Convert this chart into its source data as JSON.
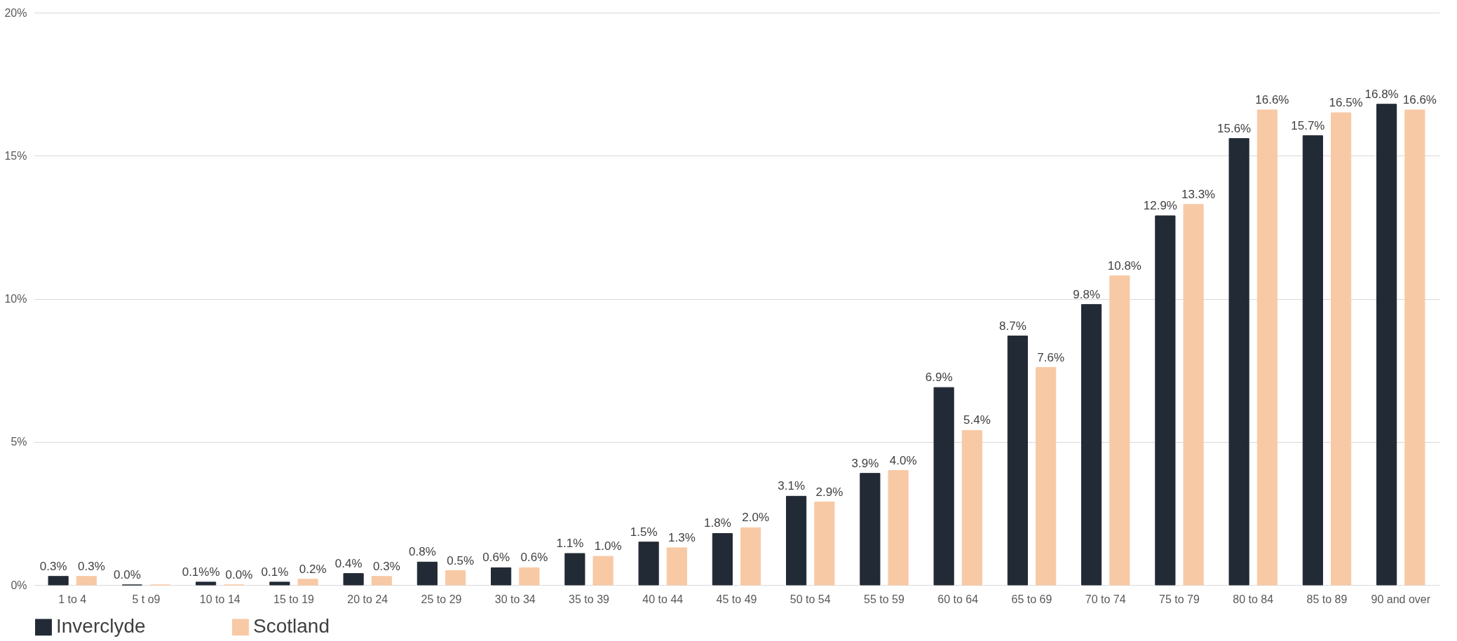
{
  "chart_data": {
    "type": "bar",
    "categories": [
      "1 to 4",
      "5 t o9",
      "10 to 14",
      "15 to 19",
      "20 to 24",
      "25 to 29",
      "30 to 34",
      "35 to 39",
      "40 to 44",
      "45 to 49",
      "50 to 54",
      "55 to 59",
      "60 to 64",
      "65 to 69",
      "70 to 74",
      "75 to 79",
      "80 to 84",
      "85 to 89",
      "90 and over"
    ],
    "series": [
      {
        "name": "Inverclyde",
        "color": "#222a35",
        "values": [
          0.3,
          0.0,
          0.1,
          0.1,
          0.4,
          0.8,
          0.6,
          1.1,
          1.5,
          1.8,
          3.1,
          3.9,
          6.9,
          8.7,
          9.8,
          12.9,
          15.6,
          15.7,
          16.8
        ],
        "value_labels": [
          "0.3%",
          "0.0%",
          "0.1%%",
          "0.1%",
          "0.4%",
          "0.8%",
          "0.6%",
          "1.1%",
          "1.5%",
          "1.8%",
          "3.1%",
          "3.9%",
          "6.9%",
          "8.7%",
          "9.8%",
          "12.9%",
          "15.6%",
          "15.7%",
          "16.8%"
        ]
      },
      {
        "name": "Scotland",
        "color": "#f8c9a5",
        "values": [
          0.3,
          0.0,
          0.0,
          0.2,
          0.3,
          0.5,
          0.6,
          1.0,
          1.3,
          2.0,
          2.9,
          4.0,
          5.4,
          7.6,
          10.8,
          13.3,
          16.6,
          16.5,
          16.6
        ],
        "value_labels": [
          "0.3%",
          null,
          "0.0%",
          "0.2%",
          "0.3%",
          "0.5%",
          "0.6%",
          "1.0%",
          "1.3%",
          "2.0%",
          "2.9%",
          "4.0%",
          "5.4%",
          "7.6%",
          "10.8%",
          "13.3%",
          "16.6%",
          "16.5%",
          "16.6%"
        ]
      }
    ],
    "ylim": [
      0,
      20
    ],
    "yticks": [
      {
        "value": 0,
        "label": "0%"
      },
      {
        "value": 5,
        "label": "5%"
      },
      {
        "value": 10,
        "label": "10%"
      },
      {
        "value": 15,
        "label": "15%"
      },
      {
        "value": 20,
        "label": "20%"
      }
    ],
    "grid": "y",
    "legend": "bottom"
  }
}
